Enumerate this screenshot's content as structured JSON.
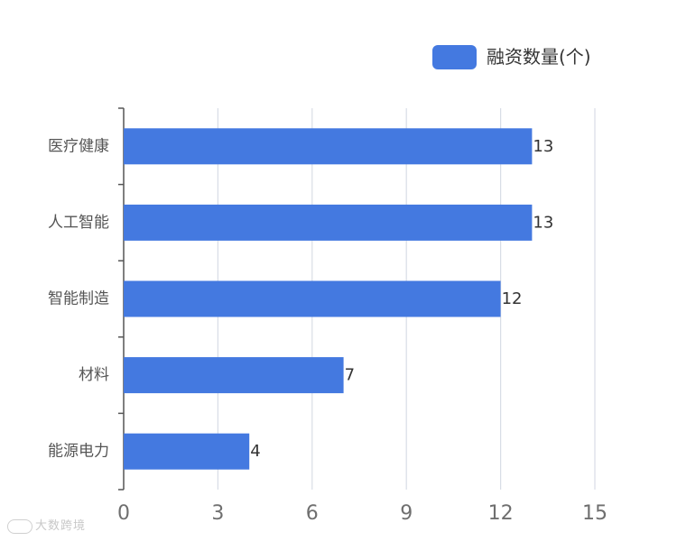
{
  "chart_data": {
    "type": "bar",
    "orientation": "horizontal",
    "categories": [
      "医疗健康",
      "人工智能",
      "智能制造",
      "材料",
      "能源电力"
    ],
    "series": [
      {
        "name": "融资数量(个)",
        "values": [
          13,
          13,
          12,
          7,
          4
        ],
        "color": "#4479e0"
      }
    ],
    "xlim": [
      0,
      15
    ],
    "xticks": [
      0,
      3,
      6,
      9,
      12,
      15
    ],
    "grid": true,
    "legend": "top-right",
    "data_labels": true
  },
  "colors": {
    "bar": "#4479e0",
    "grid": "#d8dde6",
    "axis": "#555555"
  },
  "watermark": {
    "text": "大数跨境",
    "logo_icon": "kite-logo"
  }
}
